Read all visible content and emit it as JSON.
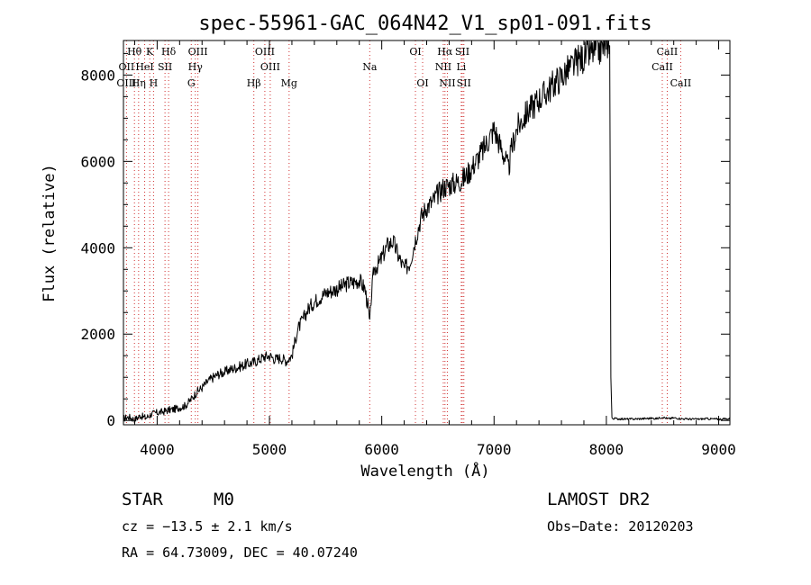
{
  "chart_data": {
    "type": "line",
    "title": "spec-55961-GAC_064N42_V1_sp01-091.fits",
    "xlabel": "Wavelength (Å)",
    "ylabel": "Flux (relative)",
    "xlim": [
      3700,
      9100
    ],
    "ylim": [
      -100,
      8800
    ],
    "xticks": [
      4000,
      5000,
      6000,
      7000,
      8000,
      9000
    ],
    "yticks": [
      0,
      2000,
      4000,
      6000,
      8000
    ],
    "grid": false,
    "series": [
      {
        "x": [
          3700,
          3750,
          3800,
          3850,
          3900,
          3950,
          4000,
          4050,
          4100,
          4150,
          4200,
          4250,
          4300,
          4350,
          4400,
          4450,
          4500,
          4550,
          4600,
          4650,
          4700,
          4750,
          4800,
          4850,
          4900,
          4950,
          5000,
          5050,
          5100,
          5150,
          5200,
          5250,
          5300,
          5350,
          5400,
          5450,
          5500,
          5550,
          5600,
          5650,
          5700,
          5750,
          5800,
          5850,
          5880,
          5893,
          5905,
          5930,
          5980,
          6050,
          6100,
          6150,
          6200,
          6250,
          6300,
          6350,
          6400,
          6450,
          6500,
          6550,
          6600,
          6650,
          6700,
          6750,
          6800,
          6850,
          6900,
          6950,
          7000,
          7050,
          7100,
          7130,
          7150,
          7200,
          7250,
          7300,
          7350,
          7400,
          7450,
          7500,
          7550,
          7600,
          7650,
          7700,
          7750,
          7800,
          7850,
          7900,
          7950,
          8000,
          8020,
          8030,
          8040,
          8050,
          8100,
          8200,
          8300,
          8400,
          8450,
          8500,
          8550,
          8600,
          8700,
          8800,
          8900,
          9000,
          9100
        ],
        "values": [
          50,
          80,
          20,
          110,
          60,
          150,
          180,
          200,
          240,
          260,
          300,
          340,
          480,
          650,
          760,
          900,
          1000,
          1080,
          1120,
          1180,
          1220,
          1260,
          1310,
          1340,
          1400,
          1470,
          1500,
          1420,
          1450,
          1380,
          1500,
          2100,
          2350,
          2600,
          2750,
          2850,
          2950,
          3000,
          3050,
          3100,
          3180,
          3200,
          3250,
          3050,
          2600,
          2200,
          2800,
          3500,
          3650,
          4050,
          4150,
          3800,
          3500,
          3650,
          4200,
          4700,
          4950,
          5050,
          5250,
          5400,
          5450,
          5500,
          5550,
          5650,
          5850,
          6050,
          6250,
          6500,
          6750,
          6400,
          6050,
          5800,
          6200,
          6750,
          6950,
          7150,
          7300,
          7450,
          7550,
          7700,
          7850,
          7950,
          8100,
          8200,
          8350,
          8400,
          8500,
          8550,
          8600,
          8700,
          8800,
          8700,
          1000,
          50,
          40,
          30,
          40,
          50,
          45,
          80,
          40,
          60,
          35,
          30,
          40,
          30,
          40
        ]
      }
    ],
    "lines": [
      {
        "label": "Hθ",
        "x": 3798,
        "row": 1
      },
      {
        "label": "K",
        "x": 3934,
        "row": 1
      },
      {
        "label": "Hδ",
        "x": 4102,
        "row": 1
      },
      {
        "label": "OIII",
        "x": 4363,
        "row": 1
      },
      {
        "label": "OIII",
        "x": 4959,
        "row": 1
      },
      {
        "label": "OI",
        "x": 6300,
        "row": 1
      },
      {
        "label": "Hα",
        "x": 6563,
        "row": 1
      },
      {
        "label": "SII",
        "x": 6717,
        "row": 1
      },
      {
        "label": "CaII",
        "x": 8542,
        "row": 1
      },
      {
        "label": "OII",
        "x": 3727,
        "row": 2
      },
      {
        "label": "HeI",
        "x": 3889,
        "row": 2
      },
      {
        "label": "SII",
        "x": 4070,
        "row": 2
      },
      {
        "label": "Hγ",
        "x": 4340,
        "row": 2
      },
      {
        "label": "OIII",
        "x": 5007,
        "row": 2
      },
      {
        "label": "Na",
        "x": 5893,
        "row": 2
      },
      {
        "label": "NII",
        "x": 6548,
        "row": 2
      },
      {
        "label": "Li",
        "x": 6708,
        "row": 2
      },
      {
        "label": "CaII",
        "x": 8498,
        "row": 2
      },
      {
        "label": "OIII",
        "x": 3727,
        "row": 3
      },
      {
        "label": "Hη",
        "x": 3835,
        "row": 3
      },
      {
        "label": "H",
        "x": 3968,
        "row": 3
      },
      {
        "label": "G",
        "x": 4304,
        "row": 3
      },
      {
        "label": "Hβ",
        "x": 4861,
        "row": 3
      },
      {
        "label": "Mg",
        "x": 5175,
        "row": 3
      },
      {
        "label": "OI",
        "x": 6364,
        "row": 3
      },
      {
        "label": "NII",
        "x": 6584,
        "row": 3
      },
      {
        "label": "SII",
        "x": 6731,
        "row": 3
      },
      {
        "label": "CaII",
        "x": 8662,
        "row": 3
      }
    ]
  },
  "info": {
    "class": "STAR",
    "subclass": "M0",
    "survey": "LAMOST DR2",
    "cz": "cz = −13.5 ± 2.1 km/s",
    "obs_date": "Obs−Date: 20120203",
    "coords": "RA =  64.73009, DEC =  40.07240"
  }
}
